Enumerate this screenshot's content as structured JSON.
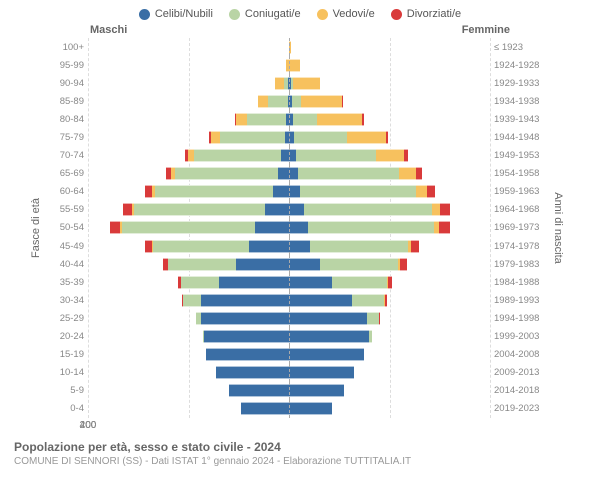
{
  "legend": [
    {
      "label": "Celibi/Nubili",
      "color": "#3a6ea5"
    },
    {
      "label": "Coniugati/e",
      "color": "#b9d4a5"
    },
    {
      "label": "Vedovi/e",
      "color": "#f7c15e"
    },
    {
      "label": "Divorziati/e",
      "color": "#d93a3a"
    }
  ],
  "headers": {
    "male": "Maschi",
    "female": "Femmine"
  },
  "axis_labels": {
    "left": "Fasce di età",
    "right": "Anni di nascita"
  },
  "colors": {
    "single": "#3a6ea5",
    "married": "#b9d4a5",
    "widowed": "#f7c15e",
    "divorced": "#d93a3a",
    "grid": "#dddddd",
    "center": "#aaaaaa"
  },
  "chart": {
    "type": "population-pyramid",
    "xmax": 400,
    "xticks": [
      400,
      200,
      0,
      200,
      400
    ],
    "rows": [
      {
        "age": "100+",
        "year": "≤ 1923",
        "m": {
          "s": 0,
          "c": 0,
          "w": 0,
          "d": 0
        },
        "f": {
          "s": 0,
          "c": 0,
          "w": 4,
          "d": 0
        }
      },
      {
        "age": "95-99",
        "year": "1924-1928",
        "m": {
          "s": 0,
          "c": 0,
          "w": 6,
          "d": 0
        },
        "f": {
          "s": 0,
          "c": 0,
          "w": 22,
          "d": 0
        }
      },
      {
        "age": "90-94",
        "year": "1929-1933",
        "m": {
          "s": 2,
          "c": 8,
          "w": 18,
          "d": 0
        },
        "f": {
          "s": 3,
          "c": 4,
          "w": 55,
          "d": 0
        }
      },
      {
        "age": "85-89",
        "year": "1934-1938",
        "m": {
          "s": 3,
          "c": 38,
          "w": 20,
          "d": 0
        },
        "f": {
          "s": 6,
          "c": 18,
          "w": 82,
          "d": 2
        }
      },
      {
        "age": "80-84",
        "year": "1939-1943",
        "m": {
          "s": 6,
          "c": 78,
          "w": 22,
          "d": 2
        },
        "f": {
          "s": 8,
          "c": 48,
          "w": 90,
          "d": 3
        }
      },
      {
        "age": "75-79",
        "year": "1944-1948",
        "m": {
          "s": 8,
          "c": 130,
          "w": 18,
          "d": 4
        },
        "f": {
          "s": 10,
          "c": 105,
          "w": 78,
          "d": 5
        }
      },
      {
        "age": "70-74",
        "year": "1949-1953",
        "m": {
          "s": 15,
          "c": 175,
          "w": 12,
          "d": 6
        },
        "f": {
          "s": 14,
          "c": 160,
          "w": 55,
          "d": 8
        }
      },
      {
        "age": "65-69",
        "year": "1954-1958",
        "m": {
          "s": 22,
          "c": 205,
          "w": 8,
          "d": 10
        },
        "f": {
          "s": 18,
          "c": 200,
          "w": 35,
          "d": 12
        }
      },
      {
        "age": "60-64",
        "year": "1959-1963",
        "m": {
          "s": 32,
          "c": 235,
          "w": 6,
          "d": 14
        },
        "f": {
          "s": 22,
          "c": 230,
          "w": 22,
          "d": 16
        }
      },
      {
        "age": "55-59",
        "year": "1964-1968",
        "m": {
          "s": 48,
          "c": 260,
          "w": 4,
          "d": 18
        },
        "f": {
          "s": 30,
          "c": 255,
          "w": 15,
          "d": 20
        }
      },
      {
        "age": "50-54",
        "year": "1969-1973",
        "m": {
          "s": 68,
          "c": 265,
          "w": 3,
          "d": 20
        },
        "f": {
          "s": 38,
          "c": 250,
          "w": 10,
          "d": 22
        }
      },
      {
        "age": "45-49",
        "year": "1974-1978",
        "m": {
          "s": 80,
          "c": 190,
          "w": 2,
          "d": 14
        },
        "f": {
          "s": 42,
          "c": 195,
          "w": 6,
          "d": 16
        }
      },
      {
        "age": "40-44",
        "year": "1979-1983",
        "m": {
          "s": 105,
          "c": 135,
          "w": 1,
          "d": 10
        },
        "f": {
          "s": 62,
          "c": 155,
          "w": 4,
          "d": 14
        }
      },
      {
        "age": "35-39",
        "year": "1984-1988",
        "m": {
          "s": 140,
          "c": 75,
          "w": 0,
          "d": 5
        },
        "f": {
          "s": 85,
          "c": 110,
          "w": 2,
          "d": 8
        }
      },
      {
        "age": "30-34",
        "year": "1989-1993",
        "m": {
          "s": 175,
          "c": 35,
          "w": 0,
          "d": 2
        },
        "f": {
          "s": 125,
          "c": 65,
          "w": 1,
          "d": 4
        }
      },
      {
        "age": "25-29",
        "year": "1994-1998",
        "m": {
          "s": 175,
          "c": 10,
          "w": 0,
          "d": 0
        },
        "f": {
          "s": 155,
          "c": 25,
          "w": 0,
          "d": 1
        }
      },
      {
        "age": "20-24",
        "year": "1999-2003",
        "m": {
          "s": 170,
          "c": 2,
          "w": 0,
          "d": 0
        },
        "f": {
          "s": 160,
          "c": 6,
          "w": 0,
          "d": 0
        }
      },
      {
        "age": "15-19",
        "year": "2004-2008",
        "m": {
          "s": 165,
          "c": 0,
          "w": 0,
          "d": 0
        },
        "f": {
          "s": 150,
          "c": 0,
          "w": 0,
          "d": 0
        }
      },
      {
        "age": "10-14",
        "year": "2009-2013",
        "m": {
          "s": 145,
          "c": 0,
          "w": 0,
          "d": 0
        },
        "f": {
          "s": 130,
          "c": 0,
          "w": 0,
          "d": 0
        }
      },
      {
        "age": "5-9",
        "year": "2014-2018",
        "m": {
          "s": 120,
          "c": 0,
          "w": 0,
          "d": 0
        },
        "f": {
          "s": 110,
          "c": 0,
          "w": 0,
          "d": 0
        }
      },
      {
        "age": "0-4",
        "year": "2019-2023",
        "m": {
          "s": 95,
          "c": 0,
          "w": 0,
          "d": 0
        },
        "f": {
          "s": 85,
          "c": 0,
          "w": 0,
          "d": 0
        }
      }
    ]
  },
  "footer": {
    "title": "Popolazione per età, sesso e stato civile - 2024",
    "subtitle": "COMUNE DI SENNORI (SS) - Dati ISTAT 1° gennaio 2024 - Elaborazione TUTTITALIA.IT"
  }
}
